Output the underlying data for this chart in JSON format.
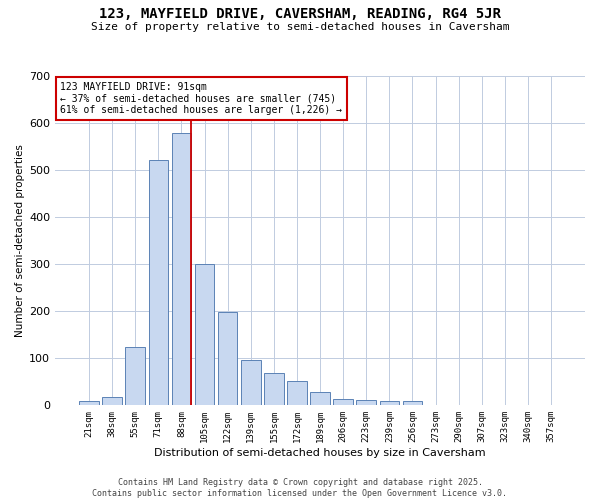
{
  "title": "123, MAYFIELD DRIVE, CAVERSHAM, READING, RG4 5JR",
  "subtitle": "Size of property relative to semi-detached houses in Caversham",
  "xlabel": "Distribution of semi-detached houses by size in Caversham",
  "ylabel": "Number of semi-detached properties",
  "footer_line1": "Contains HM Land Registry data © Crown copyright and database right 2025.",
  "footer_line2": "Contains public sector information licensed under the Open Government Licence v3.0.",
  "bin_labels": [
    "21sqm",
    "38sqm",
    "55sqm",
    "71sqm",
    "88sqm",
    "105sqm",
    "122sqm",
    "139sqm",
    "155sqm",
    "172sqm",
    "189sqm",
    "206sqm",
    "223sqm",
    "239sqm",
    "256sqm",
    "273sqm",
    "290sqm",
    "307sqm",
    "323sqm",
    "340sqm",
    "357sqm"
  ],
  "bar_values": [
    8,
    17,
    122,
    520,
    578,
    300,
    197,
    96,
    68,
    50,
    27,
    13,
    10,
    9,
    8,
    0,
    0,
    0,
    0,
    0,
    0
  ],
  "bar_color": "#c8d8f0",
  "bar_edge_color": "#5b82b5",
  "highlight_color": "#cc0000",
  "marker_bin_index": 4,
  "annotation_title": "123 MAYFIELD DRIVE: 91sqm",
  "annotation_line1": "← 37% of semi-detached houses are smaller (745)",
  "annotation_line2": "61% of semi-detached houses are larger (1,226) →",
  "annotation_box_color": "#cc0000",
  "ylim": [
    0,
    700
  ],
  "yticks": [
    0,
    100,
    200,
    300,
    400,
    500,
    600,
    700
  ],
  "background_color": "#ffffff",
  "grid_color": "#c0cce0"
}
